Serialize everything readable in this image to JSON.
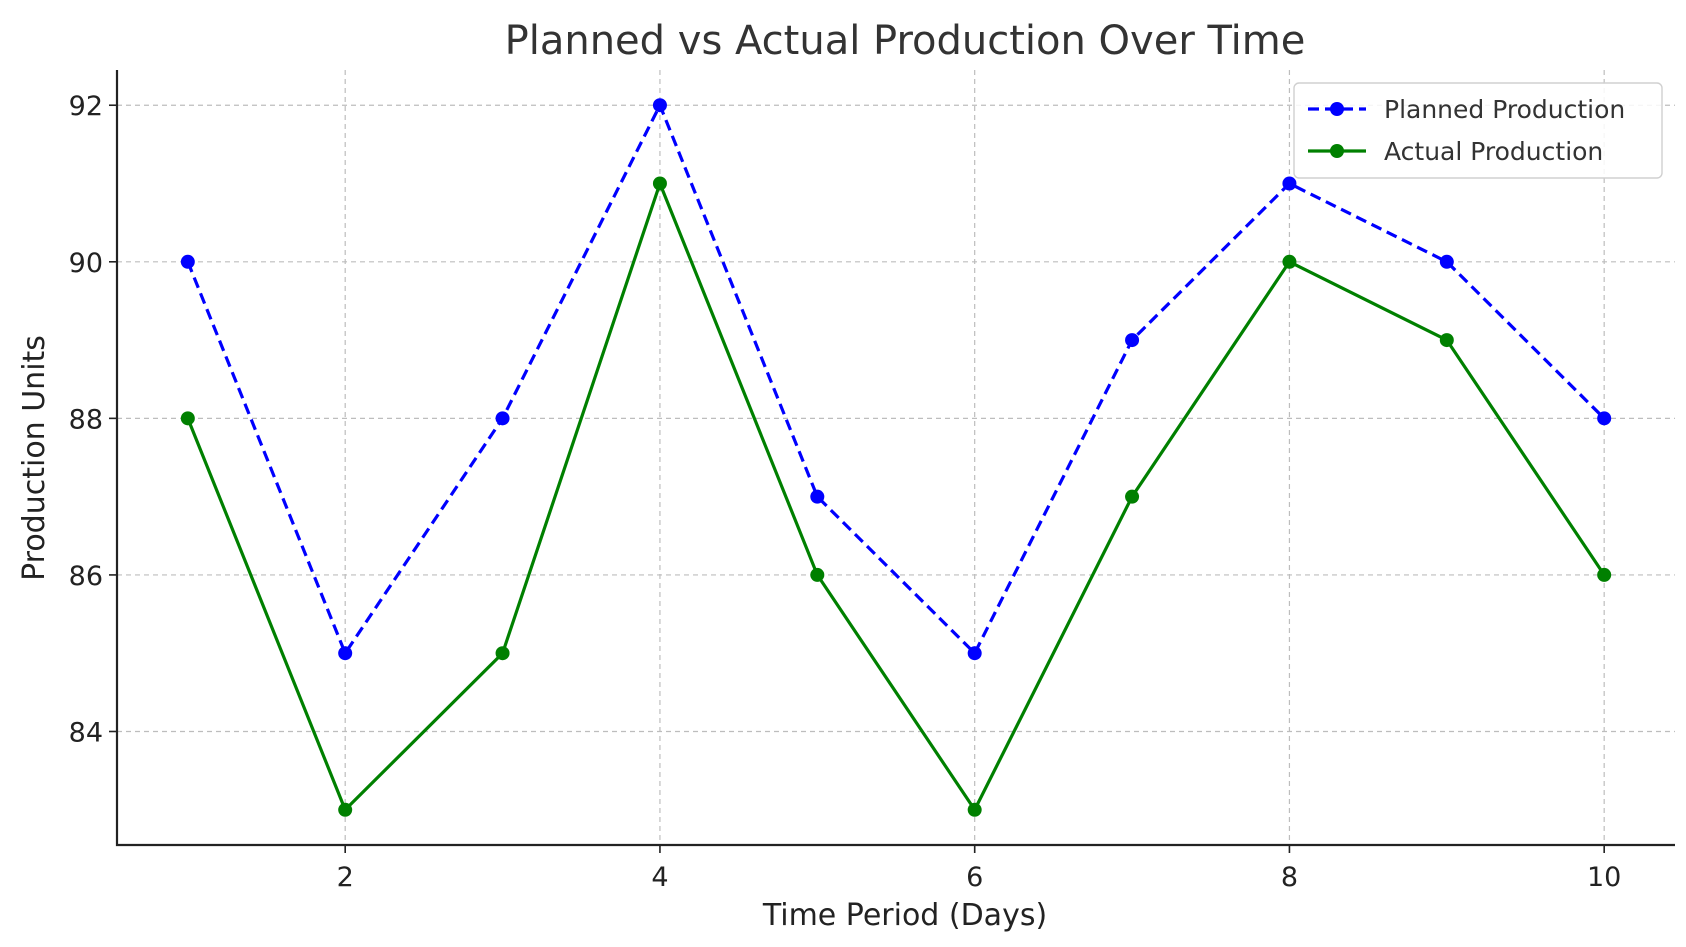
{
  "chart_data": {
    "type": "line",
    "title": "Planned vs Actual Production Over Time",
    "xlabel": "Time Period (Days)",
    "ylabel": "Production Units",
    "x": [
      1,
      2,
      3,
      4,
      5,
      6,
      7,
      8,
      9,
      10
    ],
    "xlim": [
      0.55,
      10.45
    ],
    "ylim": [
      82.55,
      92.45
    ],
    "xticks": [
      2,
      4,
      6,
      8,
      10
    ],
    "yticks": [
      84,
      86,
      88,
      90,
      92
    ],
    "grid": true,
    "legend_position": "upper right",
    "series": [
      {
        "name": "Planned Production",
        "values": [
          90,
          85,
          88,
          92,
          87,
          85,
          89,
          91,
          90,
          88
        ],
        "color": "#0000ff",
        "line_style": "dashed",
        "marker": "circle"
      },
      {
        "name": "Actual Production",
        "values": [
          88,
          83,
          85,
          91,
          86,
          83,
          87,
          90,
          89,
          86
        ],
        "color": "#008000",
        "line_style": "solid",
        "marker": "circle"
      }
    ]
  }
}
